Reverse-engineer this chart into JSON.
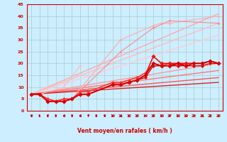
{
  "xlabel": "Vent moyen/en rafales ( km/h )",
  "background_color": "#cceeff",
  "grid_color": "#aacccc",
  "ylim": [
    0,
    45
  ],
  "xlim": [
    -0.5,
    23.5
  ],
  "yticks": [
    0,
    5,
    10,
    15,
    20,
    25,
    30,
    35,
    40,
    45
  ],
  "xticks": [
    0,
    1,
    2,
    3,
    4,
    5,
    6,
    7,
    8,
    9,
    10,
    11,
    12,
    13,
    14,
    15,
    16,
    17,
    18,
    19,
    20,
    21,
    22,
    23
  ],
  "xlabel_color": "#cc0000",
  "tick_color": "#cc0000",
  "spine_color": "#cc0000",
  "linear_series": [
    {
      "color": "#ffaaaa",
      "linewidth": 1.0,
      "x0": 0,
      "y0": 7,
      "x1": 23,
      "y1": 41
    },
    {
      "color": "#ffbbbb",
      "linewidth": 1.0,
      "x0": 0,
      "y0": 7,
      "x1": 23,
      "y1": 37
    },
    {
      "color": "#ffcccc",
      "linewidth": 1.0,
      "x0": 0,
      "y0": 7,
      "x1": 23,
      "y1": 32
    },
    {
      "color": "#ff9999",
      "linewidth": 1.0,
      "x0": 0,
      "y0": 7,
      "x1": 23,
      "y1": 20
    },
    {
      "color": "#ff7777",
      "linewidth": 1.0,
      "x0": 0,
      "y0": 7,
      "x1": 23,
      "y1": 17
    },
    {
      "color": "#ff5555",
      "linewidth": 1.0,
      "x0": 0,
      "y0": 7,
      "x1": 23,
      "y1": 14
    },
    {
      "color": "#dd2222",
      "linewidth": 1.0,
      "x0": 0,
      "y0": 7,
      "x1": 23,
      "y1": 12
    }
  ],
  "data_series": [
    {
      "color": "#ffaaaa",
      "linewidth": 0.8,
      "markersize": 2.0,
      "values": [
        7,
        7,
        5,
        4,
        5,
        5,
        null,
        null,
        null,
        null,
        null,
        30,
        null,
        null,
        null,
        36,
        37,
        37,
        null,
        null,
        null,
        null,
        null,
        40
      ]
    },
    {
      "color": "#ff8888",
      "linewidth": 0.8,
      "markersize": 2.0,
      "values": [
        7,
        7,
        5,
        4,
        5,
        5,
        null,
        null,
        null,
        null,
        null,
        25,
        null,
        null,
        null,
        35,
        null,
        38,
        null,
        null,
        null,
        null,
        null,
        37
      ]
    },
    {
      "color": "#ffbbbb",
      "linewidth": 0.8,
      "markersize": 2.0,
      "values": [
        7,
        7,
        null,
        null,
        10,
        null,
        19,
        null,
        null,
        null,
        null,
        null,
        null,
        null,
        null,
        null,
        null,
        null,
        null,
        null,
        null,
        null,
        null,
        null
      ]
    },
    {
      "color": "#ff6666",
      "linewidth": 1.0,
      "markersize": 2.5,
      "values": [
        7,
        7,
        5,
        4,
        5,
        5,
        8,
        8,
        null,
        null,
        12,
        12,
        13,
        14,
        16,
        20,
        19,
        20,
        20,
        20,
        20,
        20,
        21,
        20
      ]
    },
    {
      "color": "#ff3333",
      "linewidth": 1.0,
      "markersize": 2.5,
      "values": [
        7,
        7,
        5,
        4,
        5,
        5,
        8,
        8,
        null,
        null,
        12,
        12,
        13,
        14,
        16,
        20,
        19,
        20,
        19,
        20,
        20,
        20,
        21,
        20
      ]
    },
    {
      "color": "#ee1111",
      "linewidth": 1.2,
      "markersize": 3.0,
      "values": [
        7,
        7,
        4,
        4,
        4,
        5,
        7,
        7,
        null,
        null,
        11,
        11,
        12,
        13,
        15,
        23,
        20,
        20,
        20,
        20,
        20,
        20,
        21,
        20
      ]
    },
    {
      "color": "#cc0000",
      "linewidth": 1.2,
      "markersize": 3.0,
      "values": [
        7,
        7,
        4,
        4,
        4,
        5,
        7,
        7,
        null,
        null,
        11,
        11,
        12,
        13,
        15,
        20,
        19,
        19,
        20,
        19,
        20,
        20,
        21,
        20
      ]
    },
    {
      "color": "#dd0000",
      "linewidth": 1.0,
      "markersize": 2.5,
      "values": [
        7,
        7,
        4,
        4,
        4,
        5,
        7,
        7,
        null,
        null,
        11,
        11,
        12,
        13,
        14,
        19,
        19,
        19,
        19,
        19,
        19,
        19,
        20,
        20
      ]
    }
  ]
}
